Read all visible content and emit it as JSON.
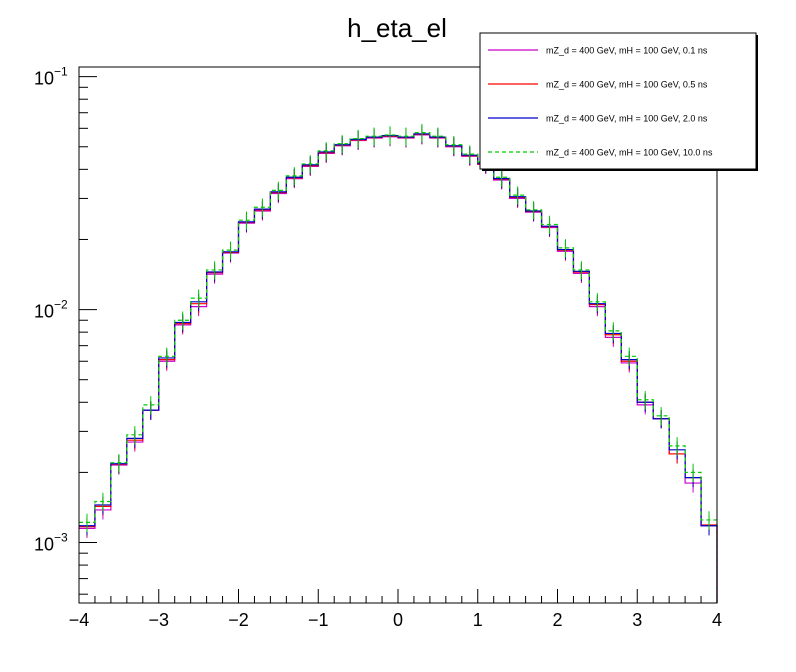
{
  "chart_data": {
    "type": "line",
    "title": "h_eta_el",
    "xlabel": "",
    "ylabel": "",
    "xlim": [
      -4,
      4
    ],
    "ylim": [
      0.00055,
      0.11
    ],
    "yscale": "log",
    "grid": false,
    "legend_position": "top-right",
    "x_ticks": [
      "−4",
      "−3",
      "−2",
      "−1",
      "0",
      "1",
      "2",
      "3",
      "4"
    ],
    "y_ticks": [
      {
        "value": 0.001,
        "base": "10",
        "exp": "−3"
      },
      {
        "value": 0.01,
        "base": "10",
        "exp": "−2"
      },
      {
        "value": 0.1,
        "base": "10",
        "exp": "−1"
      }
    ],
    "bin_edges": [
      -4.0,
      -3.8,
      -3.6,
      -3.4,
      -3.2,
      -3.0,
      -2.8,
      -2.6,
      -2.4,
      -2.2,
      -2.0,
      -1.8,
      -1.6,
      -1.4,
      -1.2,
      -1.0,
      -0.8,
      -0.6,
      -0.4,
      -0.2,
      0.0,
      0.2,
      0.4,
      0.6,
      0.8,
      1.0,
      1.2,
      1.4,
      1.6,
      1.8,
      2.0,
      2.2,
      2.4,
      2.6,
      2.8,
      3.0,
      3.2,
      3.4,
      3.6,
      3.8,
      4.0
    ],
    "series": [
      {
        "name": "mZ_d = 400 GeV, mH = 100 GeV, 0.1 ns",
        "color": "#cc00cc",
        "style": "solid",
        "values": [
          0.00115,
          0.00138,
          0.00215,
          0.0027,
          0.0037,
          0.006,
          0.0086,
          0.0103,
          0.0142,
          0.0175,
          0.0235,
          0.0265,
          0.0315,
          0.0365,
          0.0412,
          0.0468,
          0.0505,
          0.0532,
          0.0545,
          0.0552,
          0.0545,
          0.0562,
          0.0545,
          0.05,
          0.0455,
          0.042,
          0.036,
          0.03,
          0.0262,
          0.0225,
          0.0178,
          0.0143,
          0.0103,
          0.0076,
          0.0059,
          0.0039,
          0.0034,
          0.0024,
          0.0018,
          0.00118
        ]
      },
      {
        "name": "mZ_d = 400 GeV, mH = 100 GeV, 0.5 ns",
        "color": "#ff0000",
        "style": "solid",
        "values": [
          0.00117,
          0.00143,
          0.00217,
          0.00275,
          0.0037,
          0.0061,
          0.0087,
          0.0106,
          0.0144,
          0.0176,
          0.0237,
          0.0268,
          0.0318,
          0.0368,
          0.0415,
          0.0472,
          0.0508,
          0.0535,
          0.0548,
          0.0555,
          0.0548,
          0.0565,
          0.0548,
          0.0503,
          0.0458,
          0.0422,
          0.0363,
          0.0303,
          0.0264,
          0.0227,
          0.018,
          0.0145,
          0.0105,
          0.0078,
          0.006,
          0.004,
          0.0034,
          0.0024,
          0.0019,
          0.00119
        ]
      },
      {
        "name": "mZ_d = 400 GeV, mH = 100 GeV, 2.0 ns",
        "color": "#0000cc",
        "style": "solid",
        "values": [
          0.00118,
          0.00145,
          0.00218,
          0.0028,
          0.0037,
          0.0062,
          0.0088,
          0.0108,
          0.0145,
          0.0177,
          0.0238,
          0.027,
          0.032,
          0.037,
          0.0418,
          0.0475,
          0.051,
          0.0538,
          0.055,
          0.0558,
          0.055,
          0.0568,
          0.055,
          0.0505,
          0.046,
          0.0425,
          0.0365,
          0.0305,
          0.0265,
          0.0228,
          0.0181,
          0.0146,
          0.0106,
          0.0079,
          0.0061,
          0.004,
          0.0034,
          0.0025,
          0.0019,
          0.00118
        ]
      },
      {
        "name": "mZ_d = 400 GeV, mH = 100 GeV, 10.0 ns",
        "color": "#00cc00",
        "style": "dashed",
        "values": [
          0.00122,
          0.0015,
          0.0022,
          0.0029,
          0.0039,
          0.0063,
          0.009,
          0.0112,
          0.0148,
          0.018,
          0.0242,
          0.0275,
          0.0325,
          0.0375,
          0.0422,
          0.048,
          0.0515,
          0.0542,
          0.0555,
          0.0562,
          0.0555,
          0.0575,
          0.0555,
          0.051,
          0.0465,
          0.043,
          0.037,
          0.031,
          0.0268,
          0.0232,
          0.0184,
          0.0148,
          0.0108,
          0.0081,
          0.0063,
          0.0041,
          0.0035,
          0.0026,
          0.002,
          0.00125
        ]
      }
    ]
  }
}
